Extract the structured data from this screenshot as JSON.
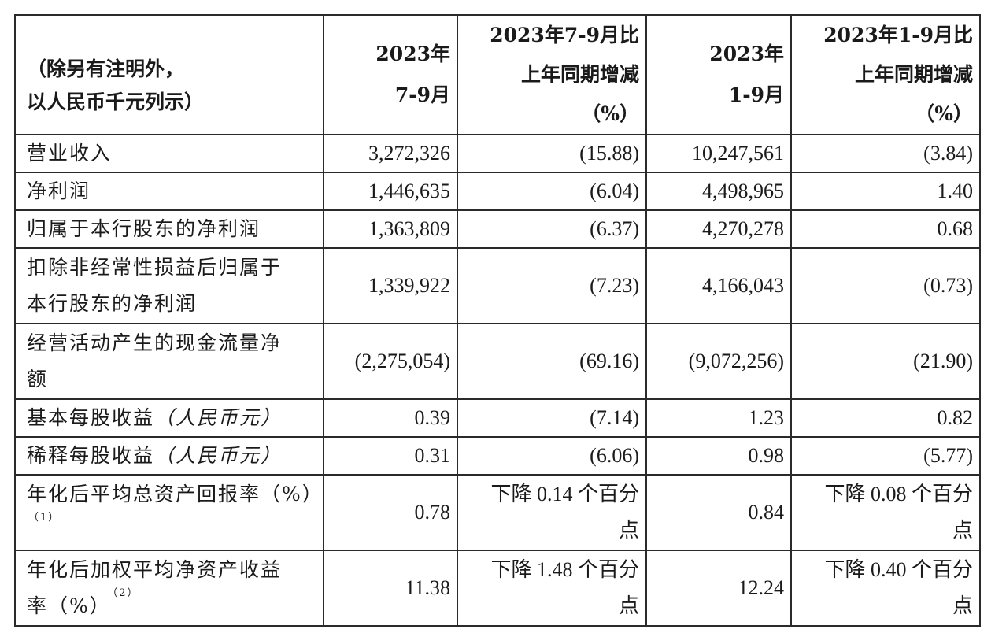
{
  "header": {
    "label_line1": "（除另有注明外，",
    "label_line2": "以人民币千元列示）",
    "col1_line1": "2023年",
    "col1_line2": "7-9月",
    "col2_line1": "2023年7-9月比",
    "col2_line2": "上年同期增减",
    "col2_line3": "（%）",
    "col3_line1": "2023年",
    "col3_line2": "1-9月",
    "col4_line1": "2023年1-9月比",
    "col4_line2": "上年同期增减",
    "col4_line3": "（%）"
  },
  "rows": [
    {
      "label": "营业收入",
      "q3": "3,272,326",
      "q3_chg": "(15.88)",
      "ytd": "10,247,561",
      "ytd_chg": "(3.84)"
    },
    {
      "label": "净利润",
      "q3": "1,446,635",
      "q3_chg": "(6.04)",
      "ytd": "4,498,965",
      "ytd_chg": "1.40"
    },
    {
      "label": "归属于本行股东的净利润",
      "q3": "1,363,809",
      "q3_chg": "(6.37)",
      "ytd": "4,270,278",
      "ytd_chg": "0.68"
    },
    {
      "label_line1": "扣除非经常性损益后归属于",
      "label_line2": "本行股东的净利润",
      "q3": "1,339,922",
      "q3_chg": "(7.23)",
      "ytd": "4,166,043",
      "ytd_chg": "(0.73)"
    },
    {
      "label_line1": "经营活动产生的现金流量净",
      "label_line2": "额",
      "q3": "(2,275,054)",
      "q3_chg": "(69.16)",
      "ytd": "(9,072,256)",
      "ytd_chg": "(21.90)"
    },
    {
      "label": "基本每股收益",
      "label_note": "（人民币元）",
      "q3": "0.39",
      "q3_chg": "(7.14)",
      "ytd": "1.23",
      "ytd_chg": "0.82"
    },
    {
      "label": "稀释每股收益",
      "label_note": "（人民币元）",
      "q3": "0.31",
      "q3_chg": "(6.06)",
      "ytd": "0.98",
      "ytd_chg": "(5.77)"
    },
    {
      "label_line1": "年化后平均总资产回报率（%）",
      "label_fn": "（1）",
      "q3": "0.78",
      "q3_chg_line1": "下降 0.14 个百分",
      "q3_chg_line2": "点",
      "ytd": "0.84",
      "ytd_chg_line1": "下降 0.08 个百分",
      "ytd_chg_line2": "点"
    },
    {
      "label_line1": "年化后加权平均净资产收益",
      "label_line2": "率（%）",
      "label_fn": "（2）",
      "q3": "11.38",
      "q3_chg_line1": "下降 1.48 个百分",
      "q3_chg_line2": "点",
      "ytd": "12.24",
      "ytd_chg_line1": "下降 0.40 个百分",
      "ytd_chg_line2": "点"
    }
  ]
}
